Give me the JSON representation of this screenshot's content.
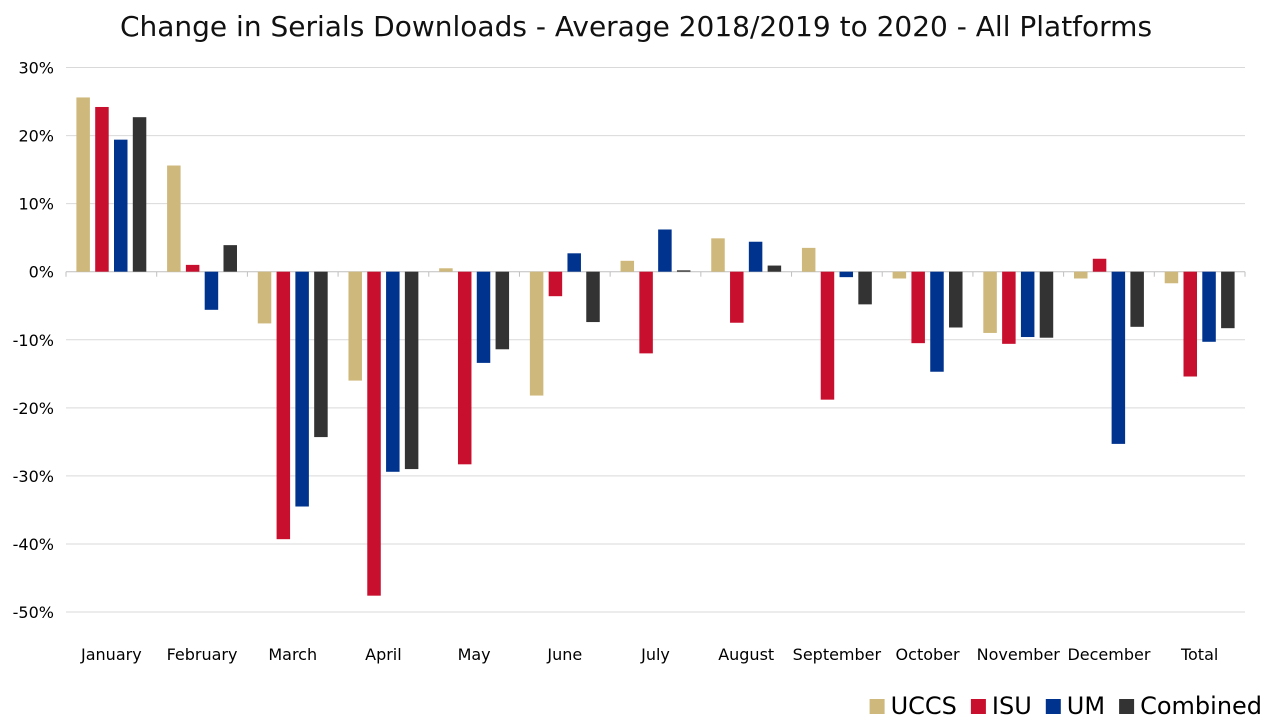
{
  "chart_data": {
    "type": "bar",
    "title": "Change in Serials Downloads - Average 2018/2019 to 2020 - All Platforms",
    "categories": [
      "January",
      "February",
      "March",
      "April",
      "May",
      "June",
      "July",
      "August",
      "September",
      "October",
      "November",
      "December",
      "Total"
    ],
    "series": [
      {
        "name": "UCCS",
        "color": "#CFB87C",
        "values": [
          25.6,
          15.6,
          -7.6,
          -16.0,
          0.5,
          -18.2,
          1.6,
          4.9,
          3.5,
          -1.0,
          -9.0,
          -1.0,
          -1.7
        ]
      },
      {
        "name": "ISU",
        "color": "#C8102E",
        "values": [
          24.2,
          1.0,
          -39.3,
          -47.6,
          -28.3,
          -3.6,
          -12.0,
          -7.5,
          -18.8,
          -10.5,
          -10.6,
          1.9,
          -15.4
        ]
      },
      {
        "name": "UM",
        "color": "#00338D",
        "values": [
          19.4,
          -5.6,
          -34.5,
          -29.4,
          -13.4,
          2.7,
          6.2,
          4.4,
          -0.8,
          -14.7,
          -9.6,
          -25.3,
          -10.3
        ]
      },
      {
        "name": "Combined",
        "color": "#333333",
        "values": [
          22.7,
          3.9,
          -24.3,
          -29.0,
          -11.4,
          -7.4,
          0.2,
          0.9,
          -4.8,
          -8.2,
          -9.7,
          -8.1,
          -8.3
        ]
      }
    ],
    "ylim": [
      -50,
      30
    ],
    "yticks": [
      "30%",
      "20%",
      "10%",
      "0%",
      "-10%",
      "-20%",
      "-30%",
      "-40%",
      "-50%"
    ],
    "ytick_values": [
      30,
      20,
      10,
      0,
      -10,
      -20,
      -30,
      -40,
      -50
    ],
    "grid": true,
    "legend_position": "bottom-right"
  }
}
